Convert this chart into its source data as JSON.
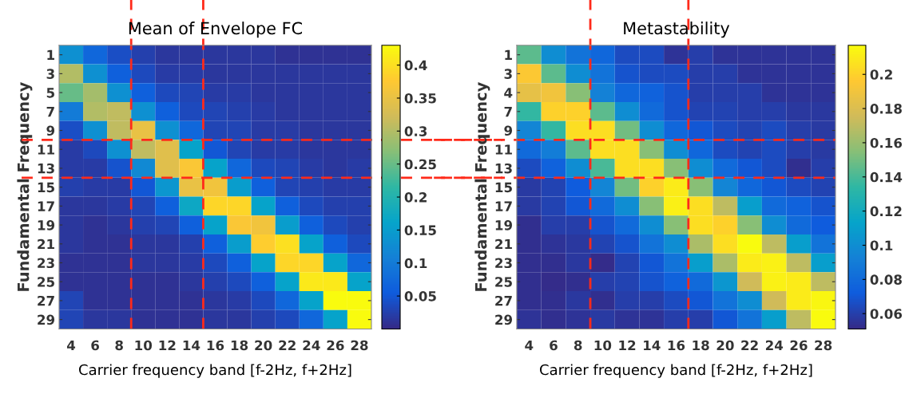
{
  "chart_data": [
    {
      "type": "heatmap",
      "title": "Mean of Envelope FC",
      "xlabel": "Carrier frequency band [f-2Hz, f+2Hz]",
      "ylabel": "Fundamental Frequency",
      "categories": [
        "4",
        "6",
        "8",
        "10",
        "12",
        "14",
        "16",
        "18",
        "20",
        "22",
        "24",
        "26",
        "28"
      ],
      "y_categories": [
        "1",
        "3",
        "5",
        "7",
        "9",
        "11",
        "13",
        "15",
        "17",
        "19",
        "21",
        "23",
        "25",
        "27",
        "29"
      ],
      "cells": [
        [
          0.13,
          0.07,
          0.04,
          0.025,
          0.015,
          0.015,
          0.015,
          0.015,
          0.015,
          0.01,
          0.01,
          0.01,
          0.01
        ],
        [
          0.3,
          0.13,
          0.06,
          0.035,
          0.02,
          0.02,
          0.015,
          0.015,
          0.015,
          0.015,
          0.015,
          0.015,
          0.015
        ],
        [
          0.25,
          0.29,
          0.13,
          0.06,
          0.035,
          0.03,
          0.02,
          0.02,
          0.015,
          0.015,
          0.015,
          0.015,
          0.015
        ],
        [
          0.1,
          0.3,
          0.31,
          0.13,
          0.06,
          0.035,
          0.03,
          0.025,
          0.02,
          0.015,
          0.015,
          0.015,
          0.015
        ],
        [
          0.04,
          0.13,
          0.31,
          0.35,
          0.13,
          0.07,
          0.03,
          0.03,
          0.02,
          0.02,
          0.015,
          0.015,
          0.015
        ],
        [
          0.02,
          0.035,
          0.13,
          0.31,
          0.34,
          0.16,
          0.05,
          0.03,
          0.02,
          0.02,
          0.015,
          0.015,
          0.015
        ],
        [
          0.02,
          0.02,
          0.045,
          0.12,
          0.34,
          0.37,
          0.16,
          0.07,
          0.035,
          0.03,
          0.02,
          0.015,
          0.02
        ],
        [
          0.025,
          0.02,
          0.02,
          0.05,
          0.14,
          0.35,
          0.36,
          0.15,
          0.06,
          0.03,
          0.025,
          0.02,
          0.02
        ],
        [
          0.015,
          0.015,
          0.02,
          0.03,
          0.06,
          0.17,
          0.39,
          0.39,
          0.16,
          0.06,
          0.035,
          0.025,
          0.025
        ],
        [
          0.015,
          0.01,
          0.015,
          0.025,
          0.03,
          0.06,
          0.16,
          0.37,
          0.36,
          0.15,
          0.06,
          0.035,
          0.025
        ],
        [
          0.015,
          0.01,
          0.01,
          0.015,
          0.015,
          0.025,
          0.06,
          0.15,
          0.38,
          0.4,
          0.16,
          0.06,
          0.035
        ],
        [
          0.01,
          0.01,
          0.01,
          0.015,
          0.015,
          0.02,
          0.035,
          0.06,
          0.16,
          0.39,
          0.39,
          0.16,
          0.07
        ],
        [
          0.01,
          0.01,
          0.01,
          0.01,
          0.01,
          0.015,
          0.025,
          0.035,
          0.06,
          0.16,
          0.41,
          0.41,
          0.16
        ],
        [
          0.03,
          0.01,
          0.01,
          0.01,
          0.01,
          0.01,
          0.015,
          0.02,
          0.035,
          0.07,
          0.16,
          0.43,
          0.43
        ],
        [
          0.03,
          0.015,
          0.015,
          0.01,
          0.01,
          0.01,
          0.015,
          0.015,
          0.025,
          0.035,
          0.07,
          0.16,
          0.43
        ]
      ],
      "clim": [
        0.0,
        0.43
      ],
      "cticks": [
        0.05,
        0.1,
        0.15,
        0.2,
        0.25,
        0.3,
        0.35,
        0.4
      ]
    },
    {
      "type": "heatmap",
      "title": "Metastability",
      "xlabel": "Carrier frequency band [f-2Hz, f+2Hz]",
      "ylabel": "Fundamental Frequency",
      "categories": [
        "4",
        "6",
        "8",
        "10",
        "12",
        "14",
        "16",
        "18",
        "20",
        "22",
        "24",
        "26",
        "28"
      ],
      "y_categories": [
        "1",
        "3",
        "4",
        "7",
        "9",
        "11",
        "13",
        "15",
        "17",
        "19",
        "21",
        "23",
        "25",
        "27",
        "29"
      ],
      "cells": [
        [
          0.145,
          0.1,
          0.085,
          0.078,
          0.065,
          0.065,
          0.055,
          0.06,
          0.055,
          0.055,
          0.055,
          0.055,
          0.055
        ],
        [
          0.195,
          0.145,
          0.1,
          0.085,
          0.068,
          0.065,
          0.065,
          0.06,
          0.06,
          0.055,
          0.055,
          0.055,
          0.055
        ],
        [
          0.185,
          0.19,
          0.155,
          0.093,
          0.078,
          0.075,
          0.068,
          0.06,
          0.06,
          0.06,
          0.055,
          0.055,
          0.055
        ],
        [
          0.135,
          0.2,
          0.2,
          0.145,
          0.1,
          0.08,
          0.068,
          0.062,
          0.062,
          0.06,
          0.06,
          0.057,
          0.057
        ],
        [
          0.095,
          0.135,
          0.205,
          0.205,
          0.15,
          0.1,
          0.078,
          0.07,
          0.065,
          0.062,
          0.065,
          0.06,
          0.058
        ],
        [
          0.08,
          0.09,
          0.145,
          0.205,
          0.205,
          0.155,
          0.1,
          0.078,
          0.065,
          0.062,
          0.065,
          0.06,
          0.058
        ],
        [
          0.065,
          0.075,
          0.1,
          0.14,
          0.205,
          0.205,
          0.155,
          0.1,
          0.08,
          0.07,
          0.065,
          0.053,
          0.06
        ],
        [
          0.058,
          0.062,
          0.072,
          0.095,
          0.15,
          0.2,
          0.21,
          0.155,
          0.095,
          0.078,
          0.07,
          0.065,
          0.062
        ],
        [
          0.058,
          0.062,
          0.07,
          0.08,
          0.1,
          0.155,
          0.212,
          0.205,
          0.17,
          0.11,
          0.08,
          0.075,
          0.068
        ],
        [
          0.053,
          0.06,
          0.06,
          0.068,
          0.08,
          0.1,
          0.155,
          0.205,
          0.2,
          0.155,
          0.1,
          0.08,
          0.072
        ],
        [
          0.053,
          0.055,
          0.057,
          0.062,
          0.068,
          0.085,
          0.1,
          0.165,
          0.205,
          0.217,
          0.17,
          0.11,
          0.085
        ],
        [
          0.053,
          0.053,
          0.057,
          0.052,
          0.062,
          0.07,
          0.085,
          0.11,
          0.165,
          0.21,
          0.213,
          0.17,
          0.11
        ],
        [
          0.053,
          0.052,
          0.053,
          0.06,
          0.062,
          0.068,
          0.075,
          0.08,
          0.105,
          0.175,
          0.213,
          0.21,
          0.17
        ],
        [
          0.053,
          0.053,
          0.057,
          0.053,
          0.06,
          0.06,
          0.065,
          0.07,
          0.085,
          0.1,
          0.175,
          0.21,
          0.215
        ],
        [
          0.055,
          0.053,
          0.055,
          0.058,
          0.055,
          0.055,
          0.06,
          0.06,
          0.07,
          0.085,
          0.11,
          0.17,
          0.217
        ]
      ],
      "clim": [
        0.051,
        0.217
      ],
      "cticks": [
        0.06,
        0.08,
        0.1,
        0.12,
        0.14,
        0.16,
        0.18,
        0.2
      ]
    }
  ]
}
